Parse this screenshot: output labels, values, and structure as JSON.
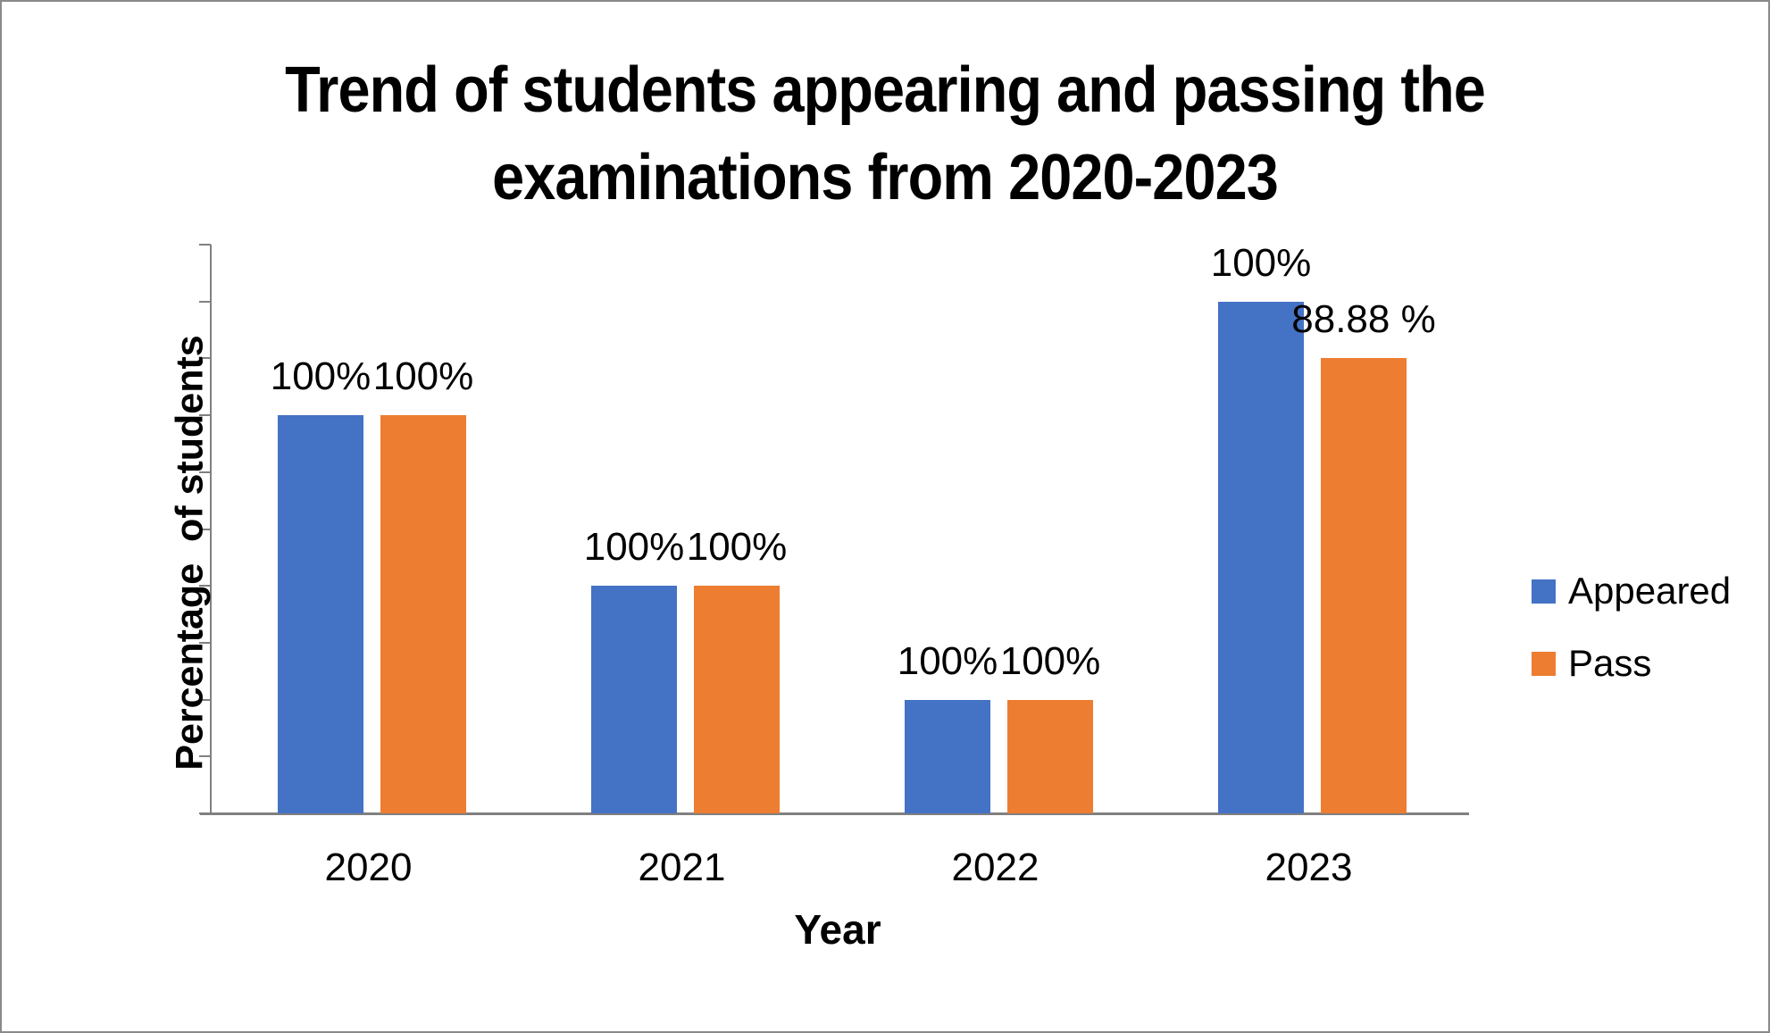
{
  "title": {
    "line1": "Trend of students appearing and passing the",
    "line2": "examinations from 2020-2023"
  },
  "chart_data": {
    "type": "bar",
    "title": "Trend of students appearing and passing the examinations from 2020-2023",
    "categories": [
      "2020",
      "2021",
      "2022",
      "2023"
    ],
    "series": [
      {
        "name": "Appeared",
        "color": "#4472C4",
        "values": [
          100,
          100,
          100,
          100
        ],
        "data_labels": [
          "100%",
          "100%",
          "100%",
          "100%"
        ],
        "bar_heights_drawn_pct_of_axis": [
          70,
          40,
          20,
          90
        ]
      },
      {
        "name": "Pass",
        "color": "#ED7D31",
        "values": [
          100,
          100,
          100,
          88.88
        ],
        "data_labels": [
          "100%",
          "100%",
          "100%",
          "88.88 %"
        ],
        "bar_heights_drawn_pct_of_axis": [
          70,
          40,
          20,
          80
        ]
      }
    ],
    "xlabel": "Year",
    "ylabel": "Percentage  of students",
    "ylim": [
      0,
      100
    ],
    "y_axis_divisions": 10,
    "y_tick_labels_visible": false,
    "gridlines": false,
    "legend_position": "right",
    "axis_color": "#808080"
  }
}
